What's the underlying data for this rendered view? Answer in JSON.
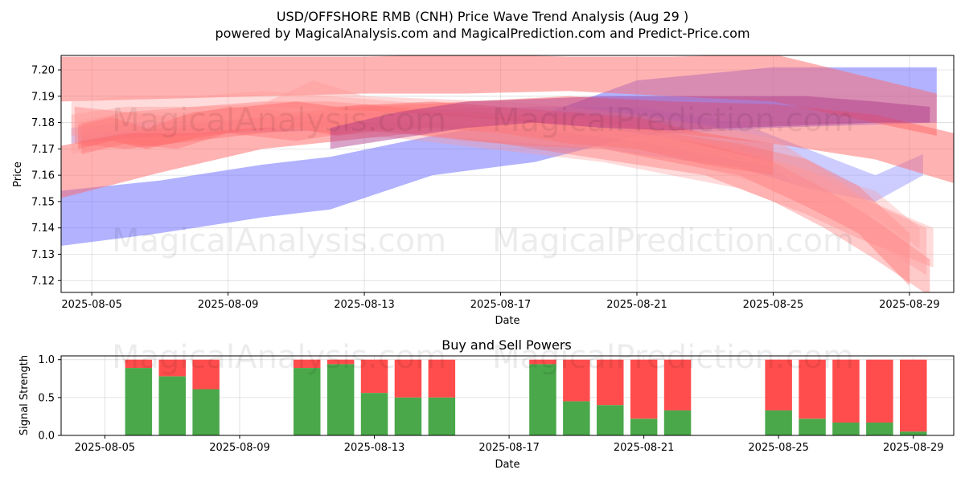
{
  "chart_data": [
    {
      "type": "area",
      "title_line1": "USD/OFFSHORE RMB (CNH) Price Wave Trend Analysis (Aug 29 )",
      "title_line2": "powered by MagicalAnalysis.com and MagicalPrediction.com and Predict-Price.com",
      "xlabel": "Date",
      "ylabel": "Price",
      "xlim": [
        -0.9,
        25.3
      ],
      "ylim": [
        7.1155,
        7.2055
      ],
      "x_origin_date": "2025-08-05",
      "xticks": [
        {
          "value": 0,
          "label": "2025-08-05"
        },
        {
          "value": 4,
          "label": "2025-08-09"
        },
        {
          "value": 8,
          "label": "2025-08-13"
        },
        {
          "value": 12,
          "label": "2025-08-17"
        },
        {
          "value": 16,
          "label": "2025-08-21"
        },
        {
          "value": 20,
          "label": "2025-08-25"
        },
        {
          "value": 24,
          "label": "2025-08-29"
        }
      ],
      "yticks": [
        {
          "value": 7.12,
          "label": "7.12"
        },
        {
          "value": 7.13,
          "label": "7.13"
        },
        {
          "value": 7.14,
          "label": "7.14"
        },
        {
          "value": 7.15,
          "label": "7.15"
        },
        {
          "value": 7.16,
          "label": "7.16"
        },
        {
          "value": 7.17,
          "label": "7.17"
        },
        {
          "value": 7.18,
          "label": "7.18"
        },
        {
          "value": 7.19,
          "label": "7.19"
        },
        {
          "value": 7.2,
          "label": "7.20"
        }
      ],
      "bands": [
        {
          "color": "#6666ff",
          "alpha": 0.5,
          "x": [
            -1.0,
            2,
            5,
            7,
            10,
            13,
            16,
            20,
            24.8
          ],
          "upper": [
            7.154,
            7.158,
            7.164,
            7.167,
            7.175,
            7.182,
            7.196,
            7.201,
            7.201
          ],
          "lower": [
            7.133,
            7.138,
            7.144,
            7.147,
            7.16,
            7.165,
            7.175,
            7.178,
            7.18
          ]
        },
        {
          "color": "#9999ff",
          "alpha": 0.5,
          "x": [
            -0.6,
            1,
            4,
            7,
            10,
            13,
            16,
            19,
            21,
            23,
            24.4
          ],
          "upper": [
            7.178,
            7.18,
            7.181,
            7.183,
            7.185,
            7.186,
            7.186,
            7.18,
            7.17,
            7.16,
            7.168
          ],
          "lower": [
            7.172,
            7.174,
            7.176,
            7.177,
            7.178,
            7.175,
            7.168,
            7.163,
            7.155,
            7.15,
            7.16
          ]
        },
        {
          "color": "#ff6666",
          "alpha": 0.5,
          "x": [
            -0.9,
            2,
            5,
            8,
            11,
            14,
            17,
            20,
            24.8
          ],
          "upper": [
            7.205,
            7.205,
            7.205,
            7.205,
            7.206,
            7.205,
            7.205,
            7.206,
            7.191
          ],
          "lower": [
            7.188,
            7.189,
            7.19,
            7.191,
            7.191,
            7.192,
            7.19,
            7.188,
            7.175
          ]
        },
        {
          "color": "#ff6666",
          "alpha": 0.5,
          "x": [
            -1.0,
            2,
            5,
            8,
            11,
            14,
            17,
            20,
            23,
            25.3
          ],
          "upper": [
            7.171,
            7.178,
            7.182,
            7.186,
            7.188,
            7.19,
            7.188,
            7.187,
            7.183,
            7.176
          ],
          "lower": [
            7.151,
            7.161,
            7.17,
            7.174,
            7.178,
            7.18,
            7.176,
            7.172,
            7.166,
            7.157
          ]
        },
        {
          "color": "#ff6666",
          "alpha": 0.4,
          "x": [
            -0.5,
            1,
            3,
            5,
            7,
            9,
            11,
            13,
            15,
            17,
            19,
            21,
            22.5,
            24
          ],
          "upper": [
            7.186,
            7.184,
            7.186,
            7.188,
            7.188,
            7.186,
            7.184,
            7.183,
            7.182,
            7.176,
            7.172,
            7.166,
            7.156,
            7.138
          ],
          "lower": [
            7.172,
            7.17,
            7.173,
            7.176,
            7.178,
            7.176,
            7.173,
            7.171,
            7.17,
            7.165,
            7.16,
            7.148,
            7.138,
            7.118
          ]
        },
        {
          "color": "#ff9999",
          "alpha": 0.35,
          "x": [
            -0.6,
            1,
            3,
            5,
            7,
            9,
            11,
            13,
            15,
            17,
            19,
            21,
            22.5,
            24.7
          ],
          "upper": [
            7.188,
            7.19,
            7.19,
            7.192,
            7.19,
            7.188,
            7.186,
            7.184,
            7.18,
            7.176,
            7.17,
            7.162,
            7.152,
            7.14
          ],
          "lower": [
            7.168,
            7.172,
            7.174,
            7.178,
            7.176,
            7.174,
            7.171,
            7.168,
            7.165,
            7.16,
            7.155,
            7.145,
            7.136,
            7.125
          ]
        },
        {
          "color": "#ff6666",
          "alpha": 0.35,
          "x": [
            -0.3,
            1,
            2.5,
            4,
            6,
            8,
            10,
            12,
            14,
            16,
            18,
            20,
            21.5,
            23,
            24.6
          ],
          "upper": [
            7.18,
            7.184,
            7.182,
            7.186,
            7.184,
            7.187,
            7.184,
            7.182,
            7.18,
            7.176,
            7.172,
            7.165,
            7.155,
            7.143,
            7.128
          ],
          "lower": [
            7.168,
            7.172,
            7.17,
            7.176,
            7.173,
            7.177,
            7.175,
            7.172,
            7.168,
            7.164,
            7.16,
            7.15,
            7.14,
            7.128,
            7.114
          ]
        },
        {
          "color": "#ff9999",
          "alpha": 0.4,
          "x": [
            -0.6,
            1,
            3,
            5,
            6.5,
            8,
            10,
            12,
            14,
            16,
            18,
            20,
            21.5,
            22.8,
            24.5
          ],
          "upper": [
            7.183,
            7.186,
            7.186,
            7.187,
            7.196,
            7.19,
            7.189,
            7.188,
            7.186,
            7.183,
            7.179,
            7.174,
            7.162,
            7.15,
            7.14
          ],
          "lower": [
            7.175,
            7.177,
            7.178,
            7.178,
            7.181,
            7.18,
            7.18,
            7.178,
            7.176,
            7.173,
            7.168,
            7.163,
            7.148,
            7.136,
            7.122
          ]
        },
        {
          "color": "#ff6666",
          "alpha": 0.45,
          "x": [
            -0.4,
            0.6,
            1.6,
            3,
            4.5,
            6,
            7.2,
            8.5,
            10,
            12,
            14,
            16,
            18,
            20
          ],
          "upper": [
            7.179,
            7.182,
            7.178,
            7.184,
            7.186,
            7.188,
            7.186,
            7.187,
            7.188,
            7.186,
            7.184,
            7.182,
            7.176,
            7.172
          ],
          "lower": [
            7.17,
            7.173,
            7.17,
            7.174,
            7.177,
            7.178,
            7.175,
            7.177,
            7.178,
            7.176,
            7.172,
            7.17,
            7.164,
            7.16
          ]
        },
        {
          "color": "#ff9999",
          "alpha": 0.3,
          "x": [
            -0.4,
            1,
            3,
            5,
            7,
            9,
            11,
            13,
            15,
            17,
            19,
            21,
            23,
            24.3
          ],
          "upper": [
            7.181,
            7.184,
            7.184,
            7.186,
            7.185,
            7.184,
            7.182,
            7.18,
            7.178,
            7.174,
            7.168,
            7.162,
            7.154,
            7.14
          ],
          "lower": [
            7.173,
            7.176,
            7.176,
            7.178,
            7.177,
            7.176,
            7.174,
            7.172,
            7.17,
            7.166,
            7.159,
            7.152,
            7.144,
            7.132
          ]
        },
        {
          "color": "#aa3388",
          "alpha": 0.45,
          "x": [
            7,
            9,
            11,
            13,
            15,
            17,
            19,
            21,
            23,
            24.6
          ],
          "upper": [
            7.178,
            7.184,
            7.188,
            7.189,
            7.19,
            7.19,
            7.19,
            7.19,
            7.188,
            7.186
          ],
          "lower": [
            7.17,
            7.174,
            7.178,
            7.18,
            7.178,
            7.177,
            7.178,
            7.179,
            7.18,
            7.18
          ]
        }
      ]
    },
    {
      "type": "bar",
      "title": "Buy and Sell Powers",
      "xlabel": "Date",
      "ylabel": "Signal Strength",
      "xlim": [
        -1.3,
        25.2
      ],
      "ylim": [
        0,
        1.05
      ],
      "x_origin_date": "2025-08-05",
      "xticks": [
        {
          "value": 0,
          "label": "2025-08-05"
        },
        {
          "value": 4,
          "label": "2025-08-09"
        },
        {
          "value": 8,
          "label": "2025-08-13"
        },
        {
          "value": 12,
          "label": "2025-08-17"
        },
        {
          "value": 16,
          "label": "2025-08-21"
        },
        {
          "value": 20,
          "label": "2025-08-25"
        },
        {
          "value": 24,
          "label": "2025-08-29"
        }
      ],
      "yticks": [
        {
          "value": 0.0,
          "label": "0.0"
        },
        {
          "value": 0.5,
          "label": "0.5"
        },
        {
          "value": 1.0,
          "label": "1.0"
        }
      ],
      "buy_color": "#4aa84a",
      "sell_color": "#ff4d4d",
      "bars": [
        {
          "date": "2025-08-06",
          "buy": 0.89
        },
        {
          "date": "2025-08-07",
          "buy": 0.78
        },
        {
          "date": "2025-08-08",
          "buy": 0.61
        },
        {
          "date": "2025-08-11",
          "buy": 0.89
        },
        {
          "date": "2025-08-12",
          "buy": 0.94
        },
        {
          "date": "2025-08-13",
          "buy": 0.56
        },
        {
          "date": "2025-08-14",
          "buy": 0.5
        },
        {
          "date": "2025-08-15",
          "buy": 0.5
        },
        {
          "date": "2025-08-18",
          "buy": 0.94
        },
        {
          "date": "2025-08-19",
          "buy": 0.45
        },
        {
          "date": "2025-08-20",
          "buy": 0.4
        },
        {
          "date": "2025-08-21",
          "buy": 0.22
        },
        {
          "date": "2025-08-22",
          "buy": 0.33
        },
        {
          "date": "2025-08-25",
          "buy": 0.33
        },
        {
          "date": "2025-08-26",
          "buy": 0.22
        },
        {
          "date": "2025-08-27",
          "buy": 0.17
        },
        {
          "date": "2025-08-28",
          "buy": 0.17
        },
        {
          "date": "2025-08-29",
          "buy": 0.05
        }
      ]
    }
  ],
  "watermarks": {
    "left": "MagicalAnalysis.com",
    "right": "MagicalPrediction.com"
  }
}
